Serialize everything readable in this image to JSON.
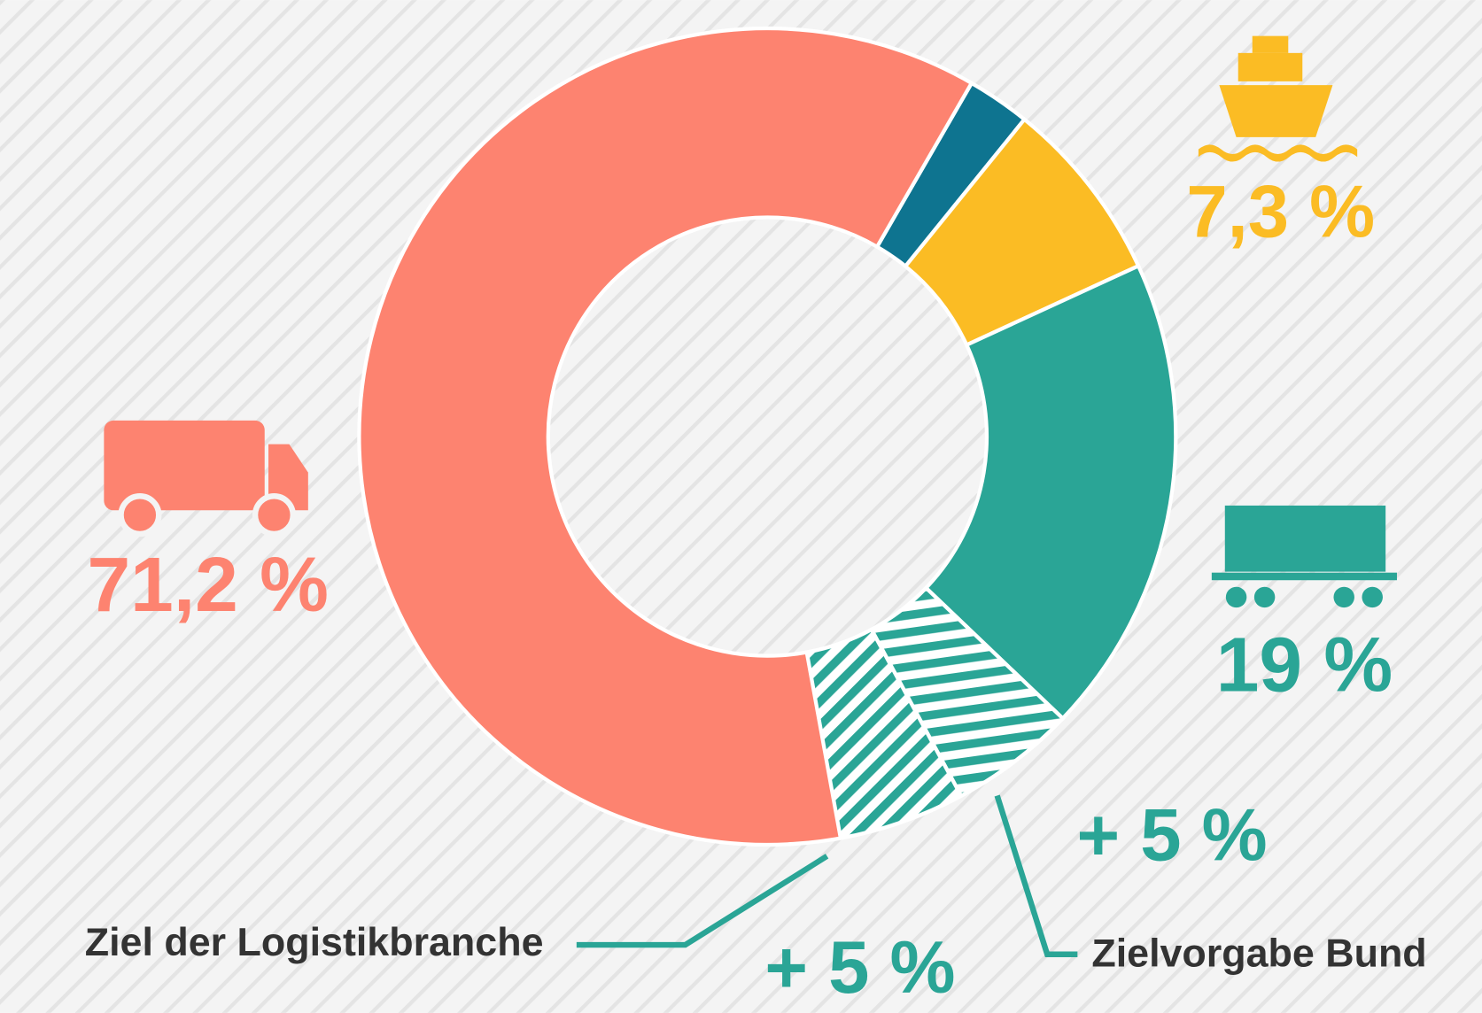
{
  "chart_data": {
    "type": "donut",
    "categories": [
      null,
      "Schiff",
      "Bahn",
      "Lkw"
    ],
    "values": [
      2.5,
      7.3,
      19,
      71.2
    ],
    "value_labels": [
      null,
      "7,3 %",
      "19 %",
      "71,2 %"
    ],
    "colors": [
      "#0e7490",
      "#fbbc24",
      "#2aa596",
      "#fd8370"
    ],
    "goals": [
      {
        "name": "Zielvorgabe Bund",
        "value": 5,
        "label": "+ 5 %"
      },
      {
        "name": "Ziel der Logistikbranche",
        "value": 5,
        "label": "+ 5 %"
      }
    ],
    "goal_color": "#2aa596"
  }
}
